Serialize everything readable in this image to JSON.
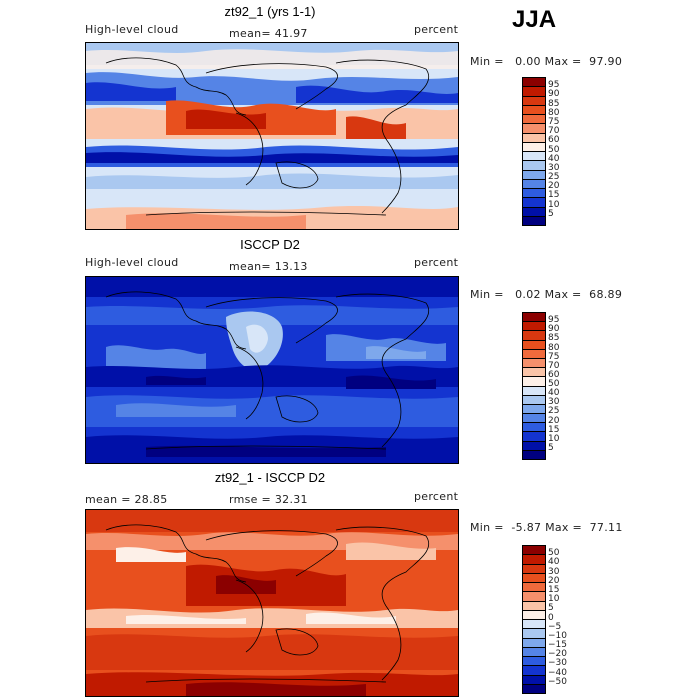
{
  "season": "JJA",
  "panels": [
    {
      "title": "zt92_1 (yrs 1-1)",
      "left_label": "High-level cloud",
      "mid_label": "mean=  41.97",
      "right_label": "percent",
      "minmax": "Min =   0.00 Max =  97.90",
      "palette": "abs"
    },
    {
      "title": "ISCCP D2",
      "left_label": "High-level cloud",
      "mid_label": "mean=  13.13",
      "right_label": "percent",
      "minmax": "Min =   0.02 Max =  68.89",
      "palette": "abs"
    },
    {
      "title": "zt92_1 - ISCCP D2",
      "left_label": "mean =  28.85",
      "mid_label": "rmse =  32.31",
      "right_label": "percent",
      "minmax": "Min =  -5.87 Max =  77.11",
      "palette": "diff"
    }
  ],
  "colorbars": {
    "abs": {
      "levels": [
        "95",
        "90",
        "85",
        "80",
        "75",
        "70",
        "60",
        "50",
        "40",
        "30",
        "25",
        "20",
        "15",
        "10",
        "5"
      ],
      "colors": [
        "#8b0000",
        "#c01a00",
        "#d83810",
        "#e8501e",
        "#f06a3c",
        "#f5906c",
        "#fac4a8",
        "#fdf0e8",
        "#d8e6f8",
        "#aac8f0",
        "#7ea8ec",
        "#5584e6",
        "#2e5ce0",
        "#1434d0",
        "#0010a8",
        "#000080"
      ]
    },
    "diff": {
      "levels": [
        "50",
        "40",
        "30",
        "20",
        "15",
        "10",
        "5",
        "0",
        "−5",
        "−10",
        "−15",
        "−20",
        "−30",
        "−40",
        "−50"
      ],
      "colors": [
        "#8b0000",
        "#c01a00",
        "#d83810",
        "#e8501e",
        "#f06a3c",
        "#f5906c",
        "#fac4a8",
        "#fdf0e8",
        "#d8e6f8",
        "#aac8f0",
        "#7ea8ec",
        "#5584e6",
        "#2e5ce0",
        "#1434d0",
        "#0010a8",
        "#000080"
      ]
    }
  },
  "chart_data": [
    {
      "type": "heatmap",
      "title": "zt92_1 (yrs 1-1)",
      "variable": "High-level cloud",
      "units": "percent",
      "mean": 41.97,
      "min": 0.0,
      "max": 97.9,
      "color_levels": [
        5,
        10,
        15,
        20,
        25,
        30,
        40,
        50,
        60,
        70,
        75,
        80,
        85,
        90,
        95
      ]
    },
    {
      "type": "heatmap",
      "title": "ISCCP D2",
      "variable": "High-level cloud",
      "units": "percent",
      "mean": 13.13,
      "min": 0.02,
      "max": 68.89,
      "color_levels": [
        5,
        10,
        15,
        20,
        25,
        30,
        40,
        50,
        60,
        70,
        75,
        80,
        85,
        90,
        95
      ]
    },
    {
      "type": "heatmap",
      "title": "zt92_1 - ISCCP D2",
      "units": "percent",
      "mean": 28.85,
      "rmse": 32.31,
      "min": -5.87,
      "max": 77.11,
      "color_levels": [
        -50,
        -40,
        -30,
        -20,
        -15,
        -10,
        -5,
        0,
        5,
        10,
        15,
        20,
        30,
        40,
        50
      ]
    }
  ]
}
